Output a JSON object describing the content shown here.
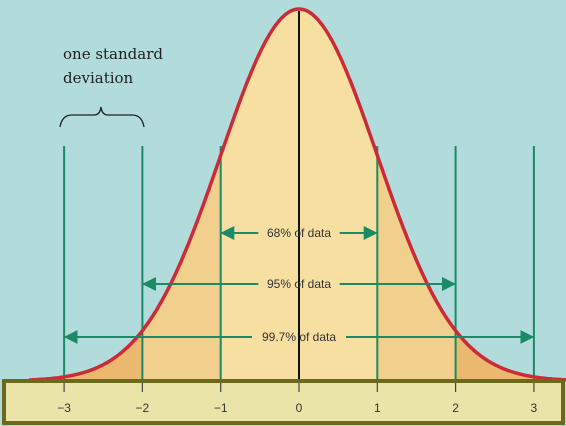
{
  "annotation": {
    "line1": "one standard",
    "line2": "deviation"
  },
  "spans": [
    {
      "label": "68% of data",
      "from": -1,
      "to": 1
    },
    {
      "label": "95% of data",
      "from": -2,
      "to": 2
    },
    {
      "label": "99.7% of data",
      "from": -3,
      "to": 3
    }
  ],
  "axis": {
    "ticks": [
      {
        "value": -3,
        "label": "−3"
      },
      {
        "value": -2,
        "label": "−2"
      },
      {
        "value": -1,
        "label": "−1"
      },
      {
        "value": 0,
        "label": "0"
      },
      {
        "value": 1,
        "label": "1"
      },
      {
        "value": 2,
        "label": "2"
      },
      {
        "value": 3,
        "label": "3"
      }
    ]
  },
  "colors": {
    "background": "#b2dcdb",
    "curve": "#cc2a36",
    "inner_band": "#f7dfa2",
    "middle_band": "#f1cf8c",
    "outer_band": "#eab96f",
    "guide_lines": "#1b8a66",
    "axis_box_border": "#6b6a1c",
    "axis_box_fill": "#ebe4a8"
  }
}
